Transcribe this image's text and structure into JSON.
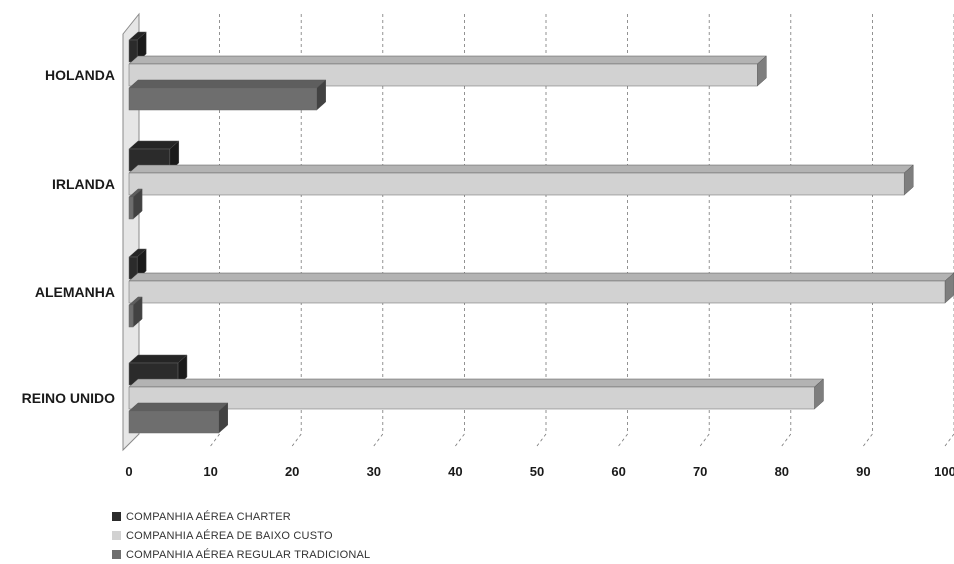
{
  "chart_data": {
    "type": "bar",
    "orientation": "horizontal",
    "categories": [
      "HOLANDA",
      "IRLANDA",
      "ALEMANHA",
      "REINO UNIDO"
    ],
    "series": [
      {
        "name": "COMPANHIA AÉREA CHARTER",
        "values": [
          1,
          5,
          1,
          6
        ],
        "color": "#2b2b2b"
      },
      {
        "name": "COMPANHIA AÉREA DE BAIXO CUSTO",
        "values": [
          77,
          95,
          100,
          84
        ],
        "color": "#d2d2d2"
      },
      {
        "name": "COMPANHIA AÉREA REGULAR TRADICIONAL",
        "values": [
          23,
          0.5,
          0.5,
          11
        ],
        "color": "#6e6e6e"
      }
    ],
    "xlim": [
      0,
      100
    ],
    "xticks": [
      "0",
      "10",
      "20",
      "30",
      "40",
      "50",
      "60",
      "70",
      "80",
      "90",
      "100"
    ],
    "grid": true,
    "legend": "bottom-left"
  }
}
